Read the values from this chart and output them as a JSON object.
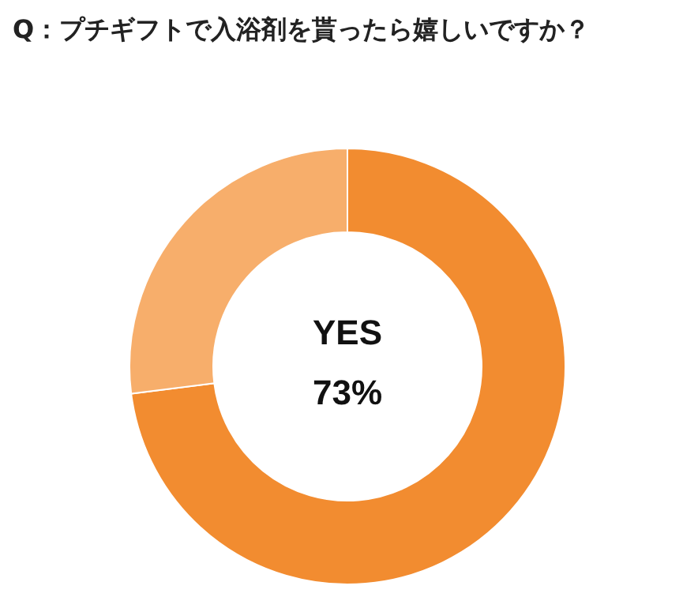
{
  "chart_data": {
    "type": "donut",
    "title": "Q：プチギフトで入浴剤を貰ったら嬉しいですか？",
    "categories": [
      "YES",
      null
    ],
    "values": [
      73,
      27
    ],
    "colors": [
      "#f28c30",
      "#f7ae6b"
    ],
    "value_labels": [
      "73%",
      null
    ]
  }
}
